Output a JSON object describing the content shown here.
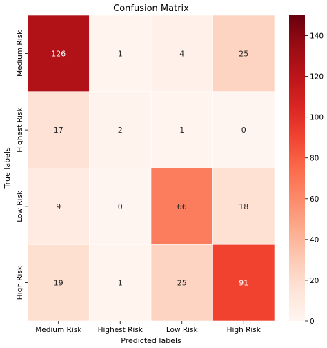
{
  "chart_data": {
    "type": "heatmap",
    "title": "Confusion Matrix",
    "xlabel": "Predicted labels",
    "ylabel": "True labels",
    "x_categories": [
      "Medium Risk",
      "Highest Risk",
      "Low Risk",
      "High Risk"
    ],
    "y_categories": [
      "Medium Risk",
      "Highest Risk",
      "Low Risk",
      "High Risk"
    ],
    "values": [
      [
        126,
        1,
        4,
        25
      ],
      [
        17,
        2,
        1,
        0
      ],
      [
        9,
        0,
        66,
        18
      ],
      [
        19,
        1,
        25,
        91
      ]
    ],
    "colorbar": {
      "range": [
        0,
        150
      ],
      "ticks": [
        "0",
        "20",
        "40",
        "60",
        "80",
        "100",
        "120",
        "140"
      ],
      "colormap": "Reds"
    },
    "grid": false,
    "legend": "colorbar-right"
  }
}
